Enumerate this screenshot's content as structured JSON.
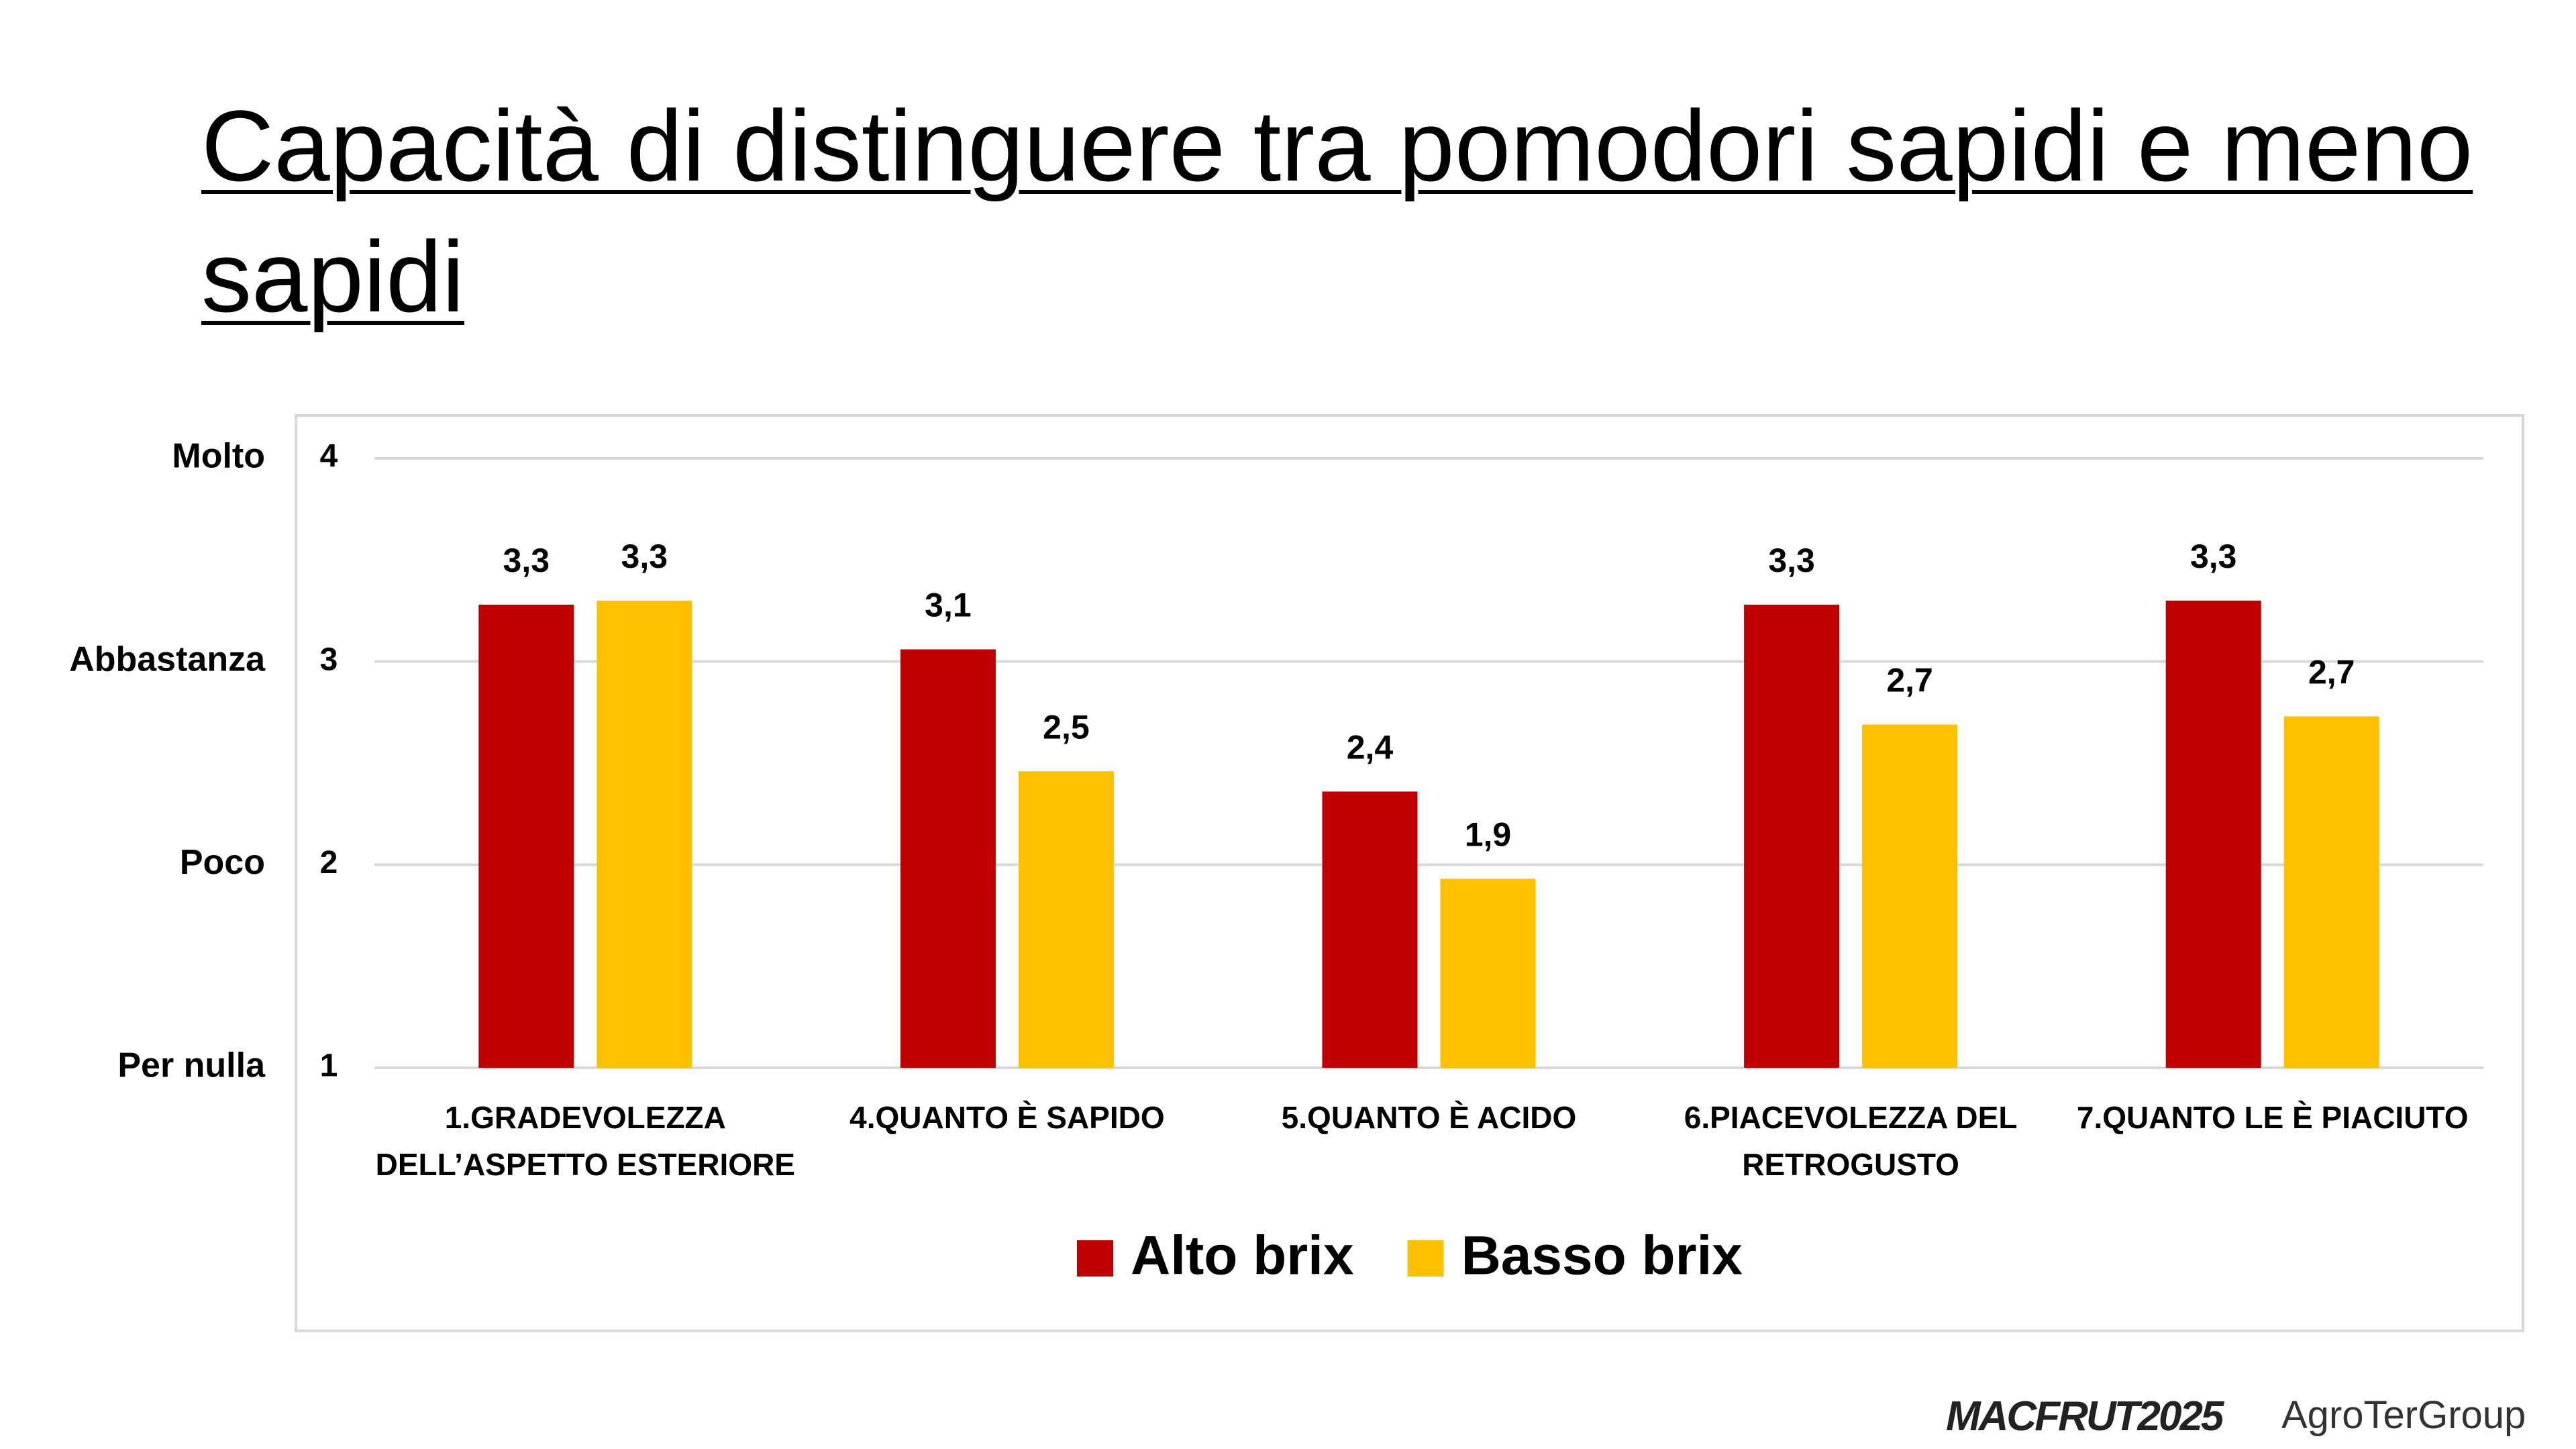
{
  "title": "Capacità di distinguere tra pomodori sapidi e meno sapidi",
  "chart_data": {
    "type": "bar",
    "categories": [
      "1.GRADEVOLEZZA DELL’ASPETTO ESTERIORE",
      "4.QUANTO È SAPIDO",
      "5.QUANTO È ACIDO",
      "6.PIACEVOLEZZA DEL RETROGUSTO",
      "7.QUANTO LE È PIACIUTO"
    ],
    "series": [
      {
        "name": "Alto brix",
        "color": "#c00000",
        "values": [
          3.28,
          3.06,
          2.36,
          3.28,
          3.3
        ],
        "value_labels": [
          "3,3",
          "3,1",
          "2,4",
          "3,3",
          "3,3"
        ]
      },
      {
        "name": "Basso brix",
        "color": "#ffc000",
        "values": [
          3.3,
          2.46,
          1.93,
          2.69,
          2.73
        ],
        "value_labels": [
          "3,3",
          "2,5",
          "1,9",
          "2,7",
          "2,7"
        ]
      }
    ],
    "ylim": [
      1,
      4
    ],
    "yticks": [
      1,
      2,
      3,
      4
    ],
    "ylevel_labels": [
      "Per nulla",
      "Poco",
      "Abbastanza",
      "Molto"
    ],
    "grid": true,
    "legend": "bottom"
  },
  "footer": {
    "logo_left": "MACFRUT2025",
    "logo_right": "AgroTerGroup"
  }
}
